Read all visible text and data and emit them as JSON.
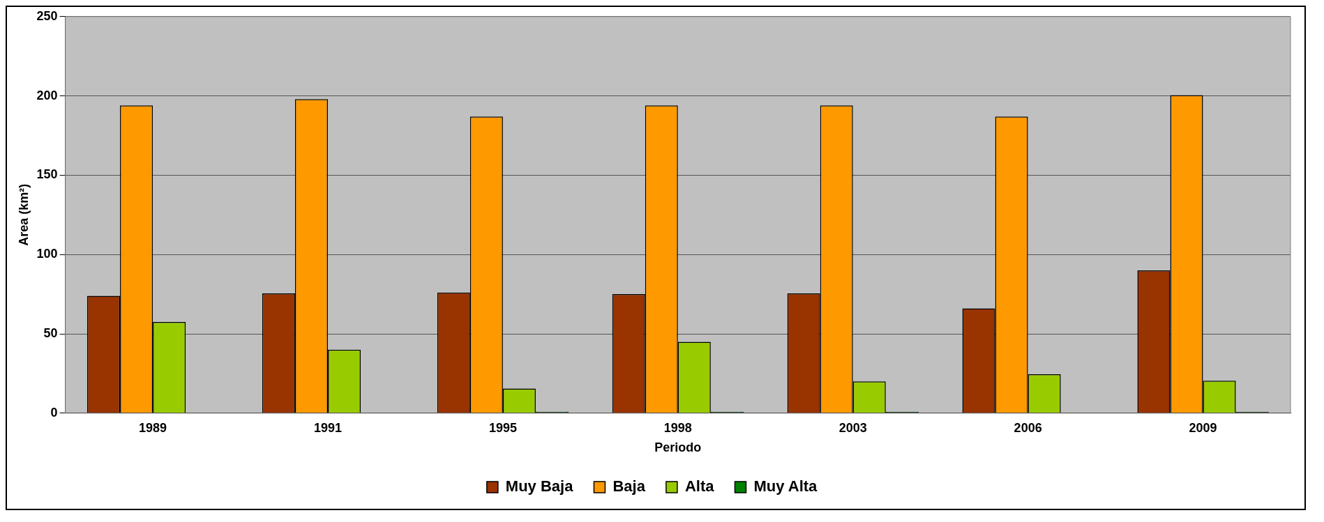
{
  "chart_data": {
    "type": "bar",
    "xlabel": "Periodo",
    "ylabel": "Area (km²)",
    "categories": [
      "1989",
      "1991",
      "1995",
      "1998",
      "2003",
      "2006",
      "2009"
    ],
    "series": [
      {
        "name": "Muy Baja",
        "color": "#993300",
        "values": [
          74,
          75.5,
          76,
          75,
          75.5,
          66,
          90
        ]
      },
      {
        "name": "Baja",
        "color": "#ff9900",
        "values": [
          194,
          198,
          187,
          194,
          194,
          187,
          200.5
        ]
      },
      {
        "name": "Alta",
        "color": "#99cc00",
        "values": [
          57.5,
          40,
          15.5,
          45,
          20,
          24.5,
          20.5
        ]
      },
      {
        "name": "Muy Alta",
        "color": "#008000",
        "values": [
          null,
          null,
          0.8,
          0.8,
          0.8,
          null,
          0.8
        ]
      }
    ],
    "ylim": [
      0,
      250
    ],
    "yticks": [
      0,
      50,
      100,
      150,
      200,
      250
    ],
    "grid": "y",
    "legend": "bottom"
  }
}
